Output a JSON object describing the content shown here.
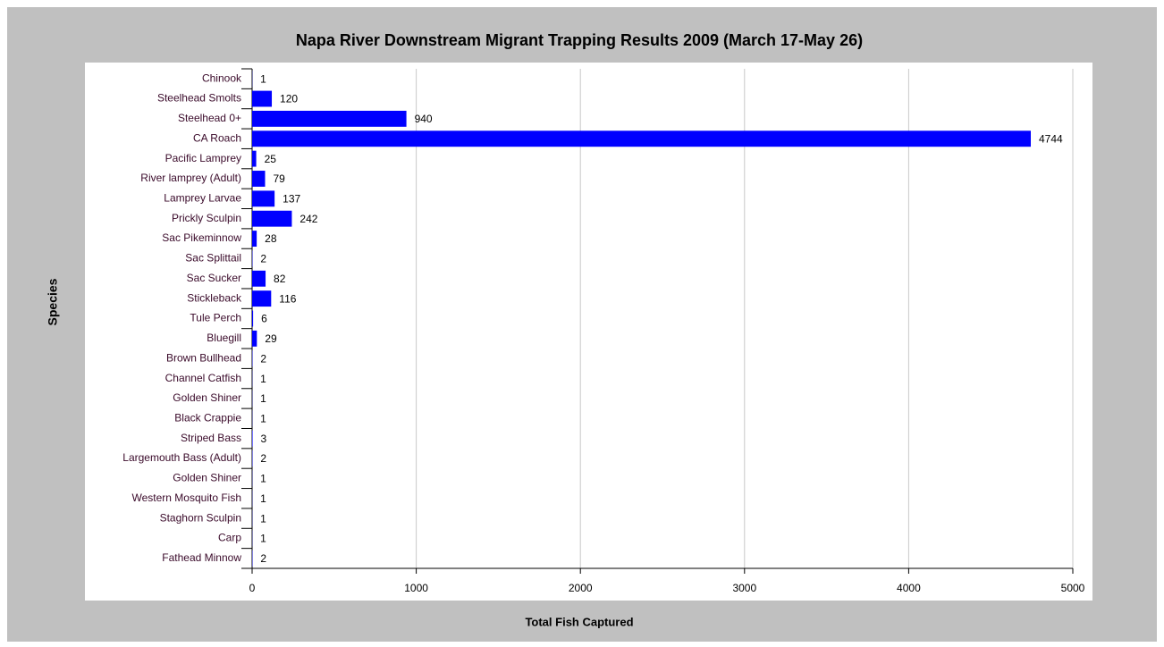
{
  "chart_data": {
    "type": "barh",
    "title": "Napa River Downstream Migrant Trapping Results 2009 (March 17-May 26)",
    "x_label": "Total Fish Captured",
    "y_label": "Species",
    "categories": [
      "Chinook",
      "Steelhead Smolts",
      "Steelhead 0+",
      "CA Roach",
      "Pacific Lamprey",
      "River lamprey (Adult)",
      "Lamprey Larvae",
      "Prickly Sculpin",
      "Sac Pikeminnow",
      "Sac Splittail",
      "Sac Sucker",
      "Stickleback",
      "Tule Perch",
      "Bluegill",
      "Brown Bullhead",
      "Channel Catfish",
      "Golden Shiner",
      "Black Crappie",
      "Striped Bass",
      "Largemouth Bass (Adult)",
      "Golden Shiner",
      "Western Mosquito Fish",
      "Staghorn Sculpin",
      "Carp",
      "Fathead Minnow"
    ],
    "values": [
      1,
      120,
      940,
      4744,
      25,
      79,
      137,
      242,
      28,
      2,
      82,
      116,
      6,
      29,
      2,
      1,
      1,
      1,
      3,
      2,
      1,
      1,
      1,
      1,
      2
    ],
    "color": "#0000ff",
    "xlim": [
      0,
      5000
    ],
    "xticks": [
      0,
      1000,
      2000,
      3000,
      4000,
      5000
    ],
    "grid": true
  }
}
